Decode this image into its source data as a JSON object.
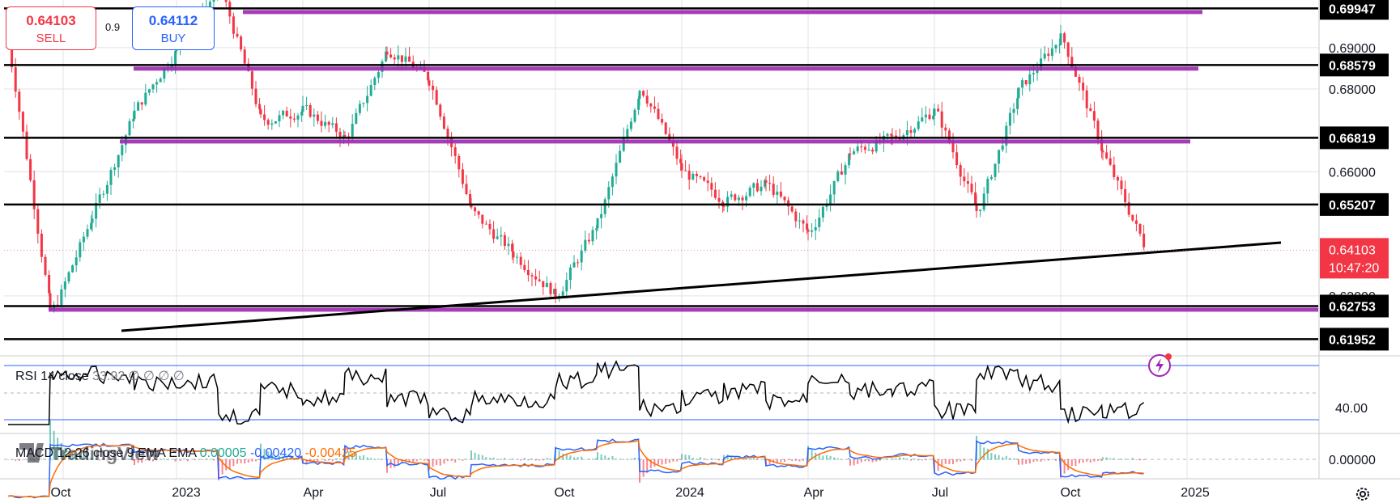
{
  "order_panel": {
    "sell_price": "0.64103",
    "sell_label": "SELL",
    "buy_price": "0.64112",
    "buy_label": "BUY",
    "spread": "0.9"
  },
  "colors": {
    "up": "#22ab94",
    "down": "#f23645",
    "purple": "#9c27b0",
    "black": "#000000",
    "rsi_band": "#2962ff",
    "macd": "#2962ff",
    "signal": "#ff6d00",
    "grid": "#e0e3eb"
  },
  "chart_data": {
    "type": "candlestick",
    "y_axis": {
      "range": [
        0.6155,
        0.7015
      ],
      "tick_labels": [
        "0.69000",
        "0.68000",
        "0.66000",
        "0.63000"
      ]
    },
    "x_axis": {
      "tick_labels": [
        "Oct",
        "2023",
        "Apr",
        "Jul",
        "Oct",
        "2024",
        "Apr",
        "Jul",
        "Oct",
        "2025"
      ]
    },
    "current_price": {
      "value": "0.64103",
      "countdown": "10:47:20"
    },
    "horizontal_levels": [
      {
        "label": "0.69947",
        "value": 0.69947,
        "color": "black"
      },
      {
        "label": "0.68579",
        "value": 0.68579,
        "color": "black"
      },
      {
        "label": "0.66819",
        "value": 0.66819,
        "color": "black"
      },
      {
        "label": "0.65207",
        "value": 0.65207,
        "color": "black"
      },
      {
        "label": "0.62753",
        "value": 0.62753,
        "color": "black"
      },
      {
        "label": "0.61952",
        "value": 0.61952,
        "color": "black"
      }
    ],
    "purple_zones": [
      0.69947,
      0.68579,
      0.66819,
      0.62753
    ],
    "trendline": {
      "from": [
        "2022-10",
        0.6195
      ],
      "to": [
        "2025-05",
        0.6425
      ]
    },
    "price_path": [
      [
        "2022-09",
        0.69
      ],
      [
        "2022-10",
        0.625
      ],
      [
        "2022-11",
        0.65
      ],
      [
        "2022-12",
        0.675
      ],
      [
        "2023-01",
        0.69
      ],
      [
        "2023-02",
        0.705
      ],
      [
        "2023-03",
        0.672
      ],
      [
        "2023-04",
        0.675
      ],
      [
        "2023-05",
        0.668
      ],
      [
        "2023-06",
        0.69
      ],
      [
        "2023-07",
        0.682
      ],
      [
        "2023-08",
        0.65
      ],
      [
        "2023-09",
        0.64
      ],
      [
        "2023-10",
        0.63
      ],
      [
        "2023-11",
        0.648
      ],
      [
        "2023-12",
        0.681
      ],
      [
        "2024-01",
        0.66
      ],
      [
        "2024-02",
        0.653
      ],
      [
        "2024-03",
        0.657
      ],
      [
        "2024-04",
        0.645
      ],
      [
        "2024-05",
        0.665
      ],
      [
        "2024-06",
        0.668
      ],
      [
        "2024-07",
        0.675
      ],
      [
        "2024-08",
        0.65
      ],
      [
        "2024-09",
        0.68
      ],
      [
        "2024-10",
        0.693
      ],
      [
        "2024-11",
        0.664
      ],
      [
        "2024-12",
        0.641
      ]
    ],
    "rsi": {
      "legend": "RSI 14 close",
      "value": "33.92",
      "extra_values": "∅ ∅ ∅ ∅",
      "axis_label": "40.00"
    },
    "macd": {
      "legend": "MACD 12 26 close 9 EMA EMA",
      "histogram": "0.00005",
      "macd": "-0.00420",
      "signal": "-0.00425",
      "axis_label": "0.00000"
    }
  }
}
